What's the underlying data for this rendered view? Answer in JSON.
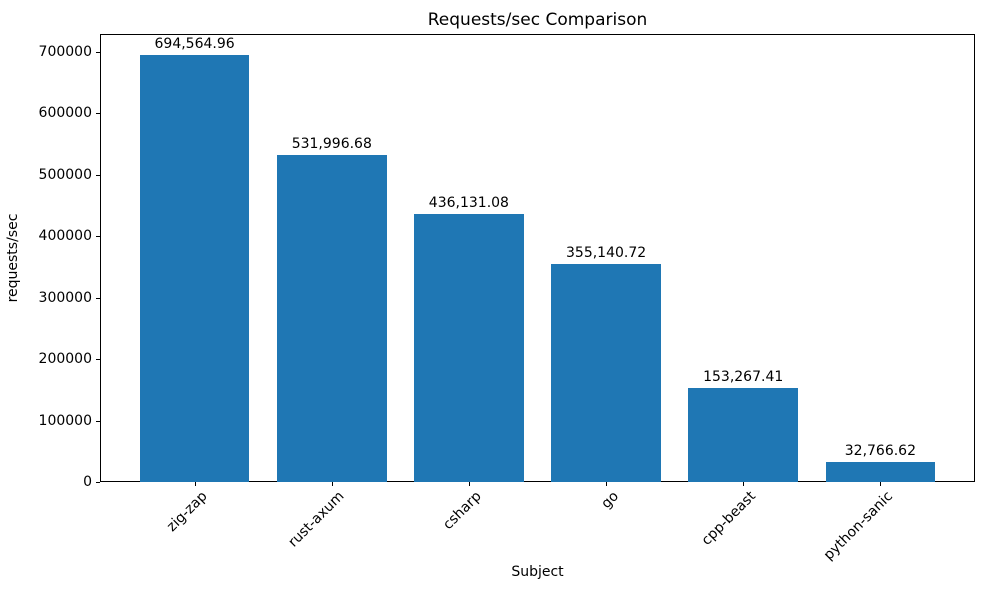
{
  "chart_data": {
    "type": "bar",
    "title": "Requests/sec Comparison",
    "xlabel": "Subject",
    "ylabel": "requests/sec",
    "categories": [
      "zig-zap",
      "rust-axum",
      "csharp",
      "go",
      "cpp-beast",
      "python-sanic"
    ],
    "values": [
      694564.96,
      531996.68,
      436131.08,
      355140.72,
      153267.41,
      32766.62
    ],
    "value_labels": [
      "694,564.96",
      "531,996.68",
      "436,131.08",
      "355,140.72",
      "153,267.41",
      "32,766.62"
    ],
    "bar_color": "#1f77b4",
    "ylim": [
      0,
      729293
    ],
    "yticks": [
      0,
      100000,
      200000,
      300000,
      400000,
      500000,
      600000,
      700000
    ],
    "grid": false,
    "legend_position": "none"
  }
}
